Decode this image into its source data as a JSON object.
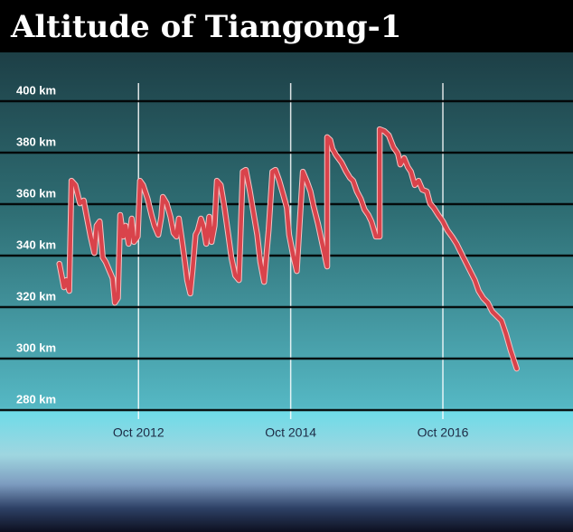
{
  "chart_data": {
    "type": "line",
    "title": "Altitude of Tiangong-1",
    "x": [
      2011.71,
      2011.77,
      2011.8,
      2011.84,
      2011.87,
      2011.92,
      2011.98,
      2012.03,
      2012.07,
      2012.12,
      2012.17,
      2012.2,
      2012.24,
      2012.28,
      2012.32,
      2012.37,
      2012.41,
      2012.44,
      2012.48,
      2012.51,
      2012.55,
      2012.58,
      2012.62,
      2012.66,
      2012.69,
      2012.74,
      2012.77,
      2012.81,
      2012.87,
      2012.92,
      2012.96,
      2013.01,
      2013.05,
      2013.07,
      2013.12,
      2013.17,
      2013.21,
      2013.25,
      2013.28,
      2013.32,
      2013.36,
      2013.39,
      2013.43,
      2013.46,
      2013.5,
      2013.53,
      2013.57,
      2013.6,
      2013.64,
      2013.68,
      2013.71,
      2013.75,
      2013.78,
      2013.83,
      2013.88,
      2013.93,
      2013.97,
      2014.02,
      2014.07,
      2014.12,
      2014.16,
      2014.21,
      2014.26,
      2014.31,
      2014.35,
      2014.4,
      2014.46,
      2014.51,
      2014.55,
      2014.6,
      2014.65,
      2014.7,
      2014.73,
      2014.78,
      2014.83,
      2014.87,
      2014.91,
      2014.96,
      2015.01,
      2015.05,
      2015.11,
      2015.17,
      2015.23,
      2015.23,
      2015.27,
      2015.3,
      2015.35,
      2015.42,
      2015.48,
      2015.53,
      2015.57,
      2015.62,
      2015.67,
      2015.72,
      2015.77,
      2015.81,
      2015.87,
      2015.92,
      2015.92,
      2015.98,
      2016.04,
      2016.1,
      2016.16,
      2016.19,
      2016.24,
      2016.29,
      2016.33,
      2016.38,
      2016.43,
      2016.48,
      2016.54,
      2016.58,
      2016.63,
      2016.69,
      2016.75,
      2016.81,
      2016.87,
      2016.93,
      2016.99,
      2017.05,
      2017.11,
      2017.17,
      2017.22,
      2017.28,
      2017.34,
      2017.4,
      2017.46,
      2017.52,
      2017.58,
      2017.64,
      2017.72
    ],
    "values": [
      336.8,
      327.7,
      330.5,
      326.3,
      369.1,
      367.4,
      360.3,
      361.4,
      355.1,
      347.4,
      341,
      351.6,
      353.3,
      339.3,
      337.5,
      334,
      331.2,
      321.7,
      323.5,
      355.8,
      347.4,
      351.6,
      344.6,
      354.4,
      345.3,
      347.4,
      369.1,
      367.4,
      362.1,
      355.8,
      351.6,
      348.1,
      355.1,
      362.8,
      360.3,
      355.1,
      348.8,
      347.4,
      354.4,
      346.3,
      337.5,
      330.5,
      325.3,
      334,
      348.1,
      349.8,
      354.4,
      351.6,
      344.6,
      355.1,
      345.3,
      351.6,
      369.1,
      367.4,
      358.6,
      348.1,
      339.3,
      332.3,
      330.5,
      372.6,
      373.3,
      365.6,
      356.8,
      348.1,
      337.5,
      329.8,
      349.8,
      372.6,
      373.3,
      369.1,
      363.9,
      358.6,
      348.1,
      340.3,
      334,
      353.3,
      372.6,
      369.1,
      364.9,
      359.3,
      352.3,
      343.9,
      335.8,
      386,
      384.9,
      381.4,
      378.9,
      376.1,
      372.6,
      370.2,
      369.1,
      364.9,
      362.1,
      357.9,
      355.8,
      353.3,
      347.4,
      347.4,
      389.1,
      388.4,
      386.7,
      382.1,
      379.6,
      375.4,
      377.9,
      374.4,
      372.6,
      367.4,
      369.1,
      365.6,
      364.9,
      360.3,
      358.6,
      355.8,
      353.3,
      349.8,
      347.4,
      344.6,
      341,
      337.5,
      334,
      330.5,
      326.3,
      323.5,
      321.7,
      318.2,
      316.5,
      314.7,
      309.5,
      303.2,
      296.1
    ],
    "color": "#d9434b",
    "xlim": [
      2010.93,
      2018.46
    ],
    "xticks": [
      {
        "value": 2012.75,
        "label": "Oct 2012"
      },
      {
        "value": 2014.75,
        "label": "Oct 2014"
      },
      {
        "value": 2016.75,
        "label": "Oct 2016"
      }
    ],
    "ylim": [
      280,
      400
    ],
    "yticks": [
      {
        "value": 280,
        "label": "280 km"
      },
      {
        "value": 300,
        "label": "300 km"
      },
      {
        "value": 320,
        "label": "320 km"
      },
      {
        "value": 340,
        "label": "340 km"
      },
      {
        "value": 360,
        "label": "360 km"
      },
      {
        "value": 380,
        "label": "380 km"
      },
      {
        "value": 400,
        "label": "400 km"
      }
    ],
    "grid": true
  }
}
